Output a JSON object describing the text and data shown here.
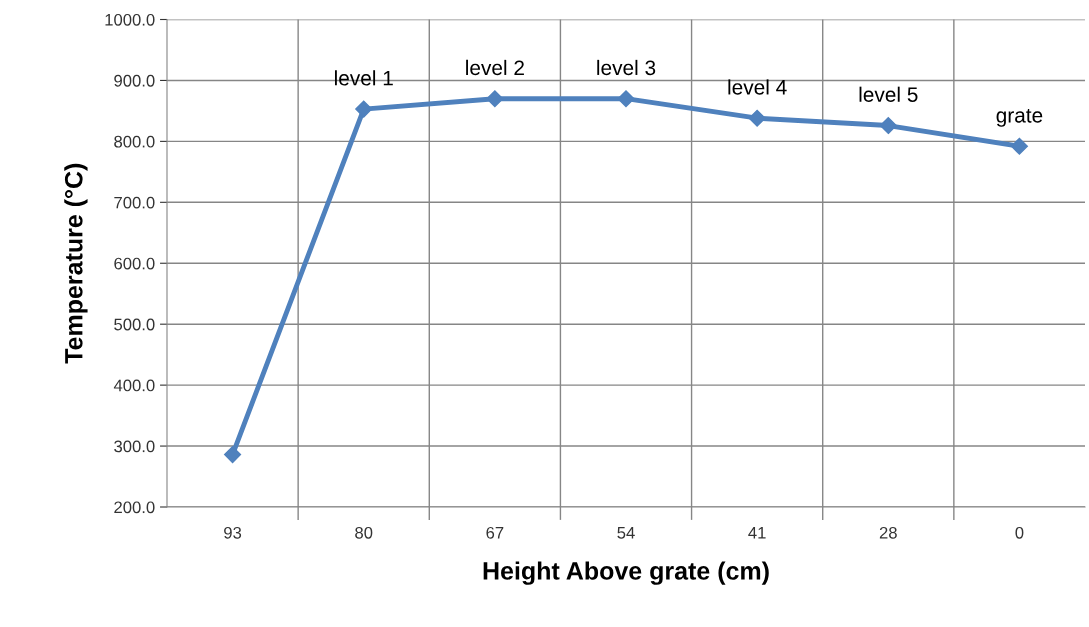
{
  "chart_data": {
    "type": "line",
    "xlabel": "Height Above grate (cm)",
    "ylabel": "Temperature (°C)",
    "categories": [
      "93",
      "80",
      "67",
      "54",
      "41",
      "28",
      "0"
    ],
    "series": [
      {
        "color": "#4f81bd",
        "values": [
          286,
          853,
          870,
          870,
          838,
          826,
          792
        ]
      }
    ],
    "ylim": [
      200,
      1000
    ],
    "yticks": [
      {
        "value": 200,
        "label": "200.0"
      },
      {
        "value": 300,
        "label": "300.0"
      },
      {
        "value": 400,
        "label": "400.0"
      },
      {
        "value": 500,
        "label": "500.0"
      },
      {
        "value": 600,
        "label": "600.0"
      },
      {
        "value": 700,
        "label": "700.0"
      },
      {
        "value": 800,
        "label": "800.0"
      },
      {
        "value": 900,
        "label": "900.0"
      },
      {
        "value": 1000,
        "label": "1000.0"
      }
    ],
    "grid": true,
    "marker": "diamond",
    "line_style": "solid",
    "annotations": [
      {
        "text": "level 1",
        "x": "80",
        "y": 853
      },
      {
        "text": "level 2",
        "x": "67",
        "y": 870
      },
      {
        "text": "level 3",
        "x": "54",
        "y": 870
      },
      {
        "text": "level 4",
        "x": "41",
        "y": 838
      },
      {
        "text": "level 5",
        "x": "28",
        "y": 826
      },
      {
        "text": "grate",
        "x": "0",
        "y": 792
      }
    ]
  }
}
